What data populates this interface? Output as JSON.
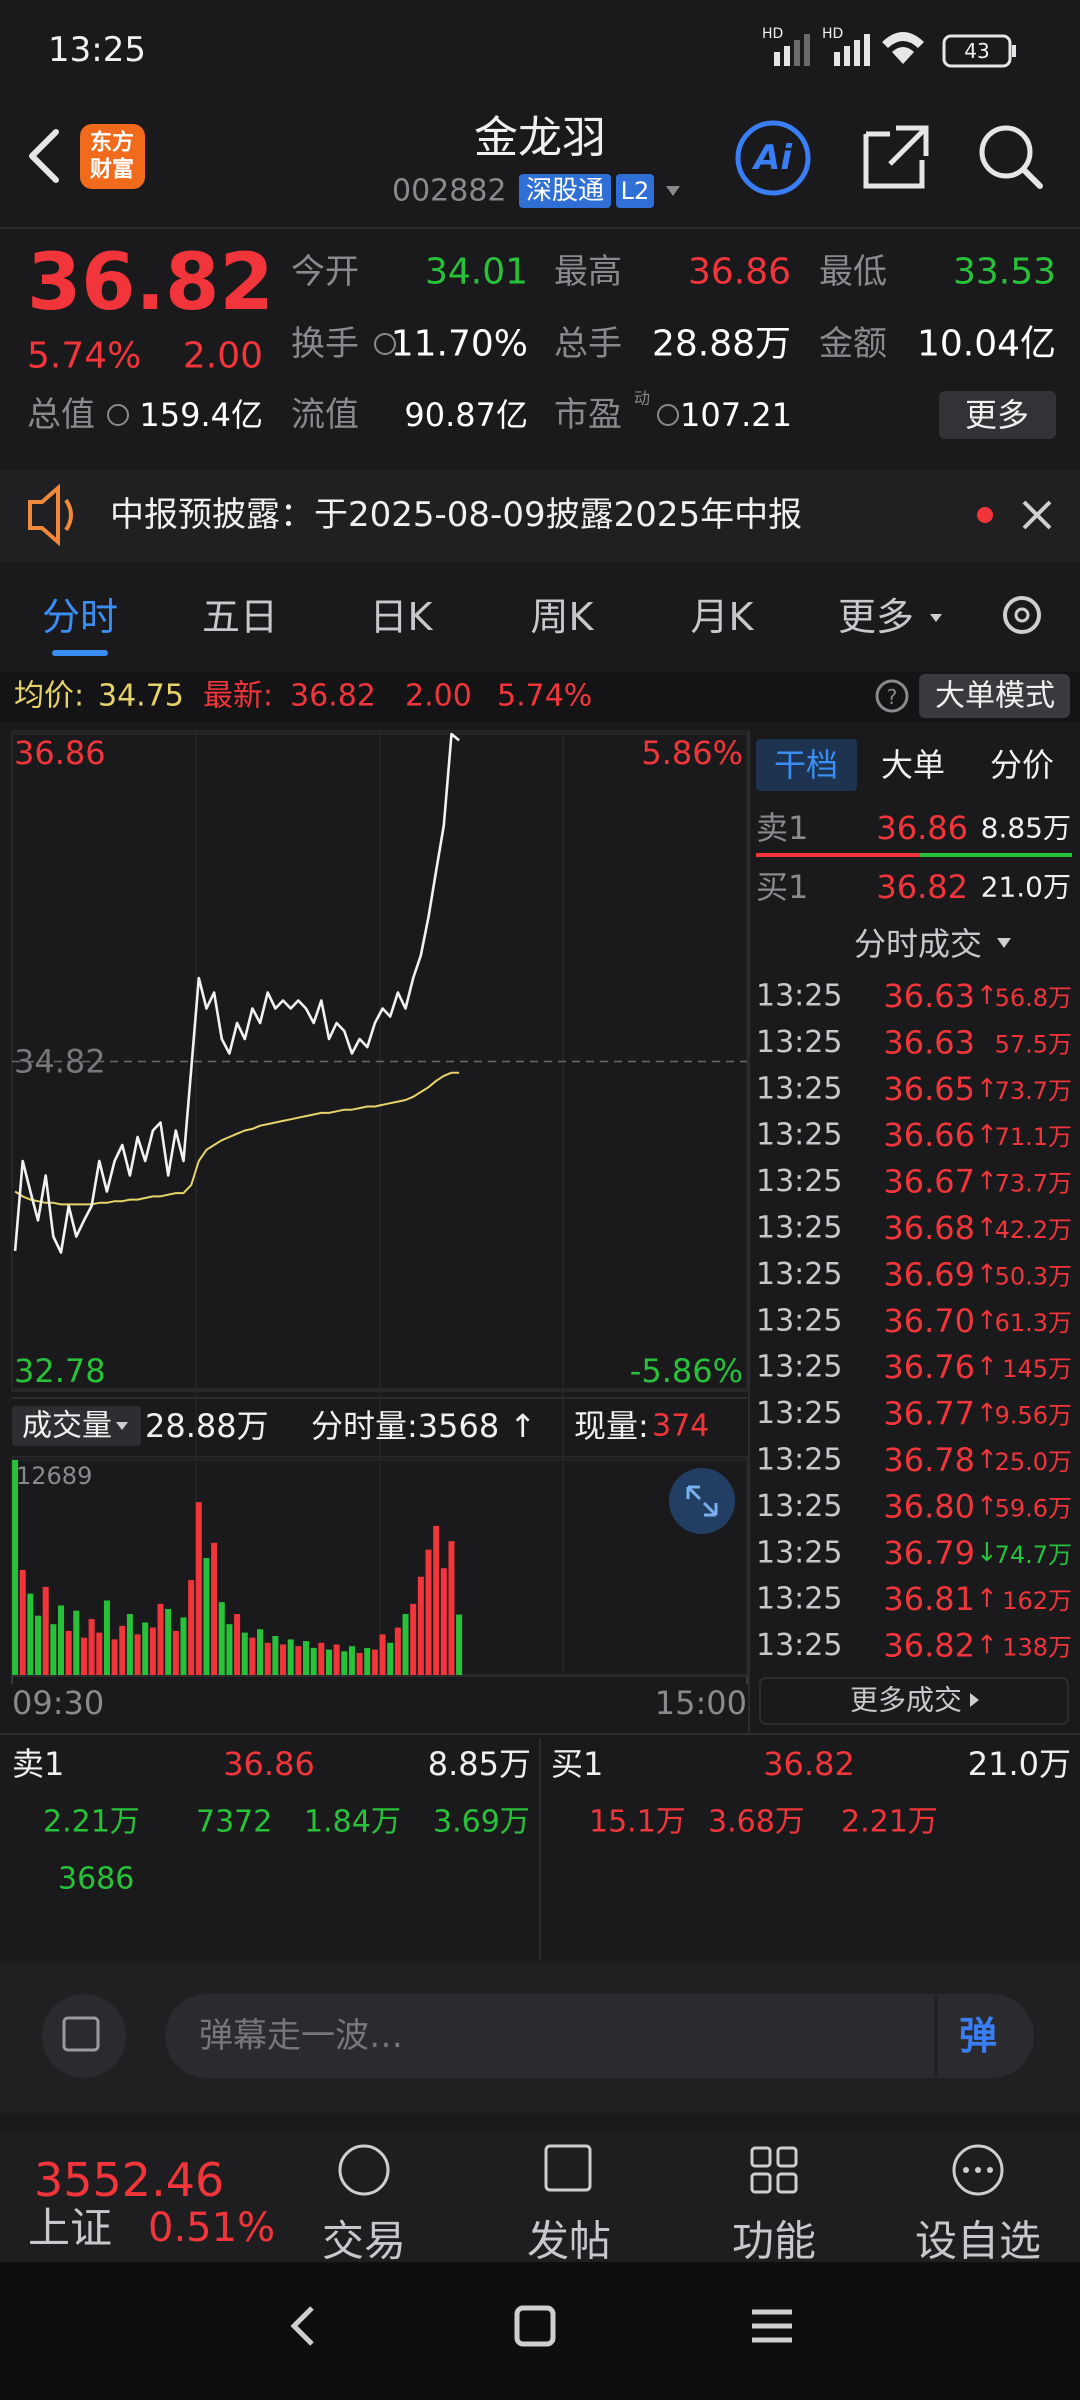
{
  "status": {
    "time": "13:25",
    "hd": "HD",
    "battery": "43"
  },
  "header": {
    "logo": [
      "东方",
      "财富"
    ],
    "title": "金龙羽",
    "code": "002882",
    "badges": [
      "深股通",
      "L2"
    ],
    "ai": "Ai"
  },
  "quote": {
    "price": "36.82",
    "pct": "5.74%",
    "change": "2.00",
    "color": "#f2353a",
    "stats": [
      {
        "label": "今开",
        "value": "34.01",
        "color": "#27c23a"
      },
      {
        "label": "最高",
        "value": "36.86",
        "color": "#f2353a"
      },
      {
        "label": "最低",
        "value": "33.53",
        "color": "#27c23a"
      },
      {
        "label": "换手",
        "value": "11.70%",
        "color": "#ffffff"
      },
      {
        "label": "总手",
        "value": "28.88万",
        "color": "#ffffff"
      },
      {
        "label": "金额",
        "value": "10.04亿",
        "color": "#ffffff"
      },
      {
        "label": "总值",
        "value": "159.4亿",
        "color": "#ffffff"
      },
      {
        "label": "流值",
        "value": "90.87亿",
        "color": "#ffffff"
      },
      {
        "label": "市盈",
        "value": "107.21",
        "color": "#ffffff"
      }
    ],
    "pe_note": "动",
    "more": "更多"
  },
  "notice": {
    "text": "中报预披露：于2025-08-09披露2025年中报"
  },
  "tabs": {
    "items": [
      "分时",
      "五日",
      "日K",
      "周K",
      "月K",
      "更多"
    ],
    "active": 0
  },
  "info": {
    "avg_label": "均价:",
    "avg": "34.75",
    "latest_label": "最新:",
    "latest": "36.82",
    "change": "2.00",
    "pct": "5.74%",
    "mode": "大单模式"
  },
  "chart_data": [
    {
      "type": "line",
      "x": [
        1,
        3.5,
        6,
        8.5,
        11,
        13.5,
        16,
        18.5,
        21,
        23.5,
        26,
        28.5,
        31,
        33.5,
        36,
        38.5,
        41,
        43.5,
        46,
        48.5,
        51,
        53.5,
        56,
        58.5,
        61,
        63.5,
        66,
        68.5,
        71,
        73.5,
        76,
        78.5,
        81,
        83.5,
        86,
        88.5,
        91,
        93.5,
        96,
        98.5,
        101,
        103.5,
        106,
        108.5,
        111,
        113.5,
        116,
        118.5,
        121,
        123.5,
        126,
        128.5,
        131,
        133.5,
        136,
        138.5,
        141,
        143.5,
        146
      ],
      "xlim": [
        0,
        240
      ],
      "xticks": [
        {
          "value": 0,
          "label": "09:30"
        },
        {
          "value": 240,
          "label": "15:00"
        }
      ],
      "ylim": [
        32.78,
        36.86
      ],
      "yticks": [
        32.78,
        34.82,
        36.86
      ],
      "pct_labels": [
        "-5.86%",
        "5.86%"
      ],
      "up_color": "#f2353a",
      "down_color": "#27c23a",
      "series": [
        {
          "color": "#f2f2f2",
          "values": [
            33.64,
            34.2,
            34.01,
            33.83,
            34.11,
            33.73,
            33.63,
            33.92,
            33.73,
            33.83,
            33.92,
            34.2,
            34.01,
            34.2,
            34.3,
            34.11,
            34.35,
            34.2,
            34.39,
            34.44,
            34.11,
            34.39,
            34.2,
            34.77,
            35.34,
            35.15,
            35.25,
            34.96,
            34.87,
            35.06,
            34.96,
            35.15,
            35.06,
            35.25,
            35.15,
            35.2,
            35.15,
            35.2,
            35.15,
            35.06,
            35.2,
            34.96,
            35.06,
            35.01,
            34.87,
            34.96,
            34.91,
            35.06,
            35.15,
            35.1,
            35.25,
            35.15,
            35.34,
            35.48,
            35.72,
            36.01,
            36.29,
            36.86,
            36.82
          ]
        },
        {
          "color": "#e8d36a",
          "values": [
            34.01,
            33.98,
            33.96,
            33.95,
            33.94,
            33.94,
            33.93,
            33.93,
            33.93,
            33.93,
            33.93,
            33.94,
            33.94,
            33.95,
            33.95,
            33.96,
            33.96,
            33.97,
            33.98,
            33.98,
            33.99,
            34.0,
            34.0,
            34.05,
            34.2,
            34.27,
            34.3,
            34.33,
            34.35,
            34.37,
            34.39,
            34.4,
            34.42,
            34.43,
            34.44,
            34.45,
            34.46,
            34.47,
            34.48,
            34.49,
            34.5,
            34.5,
            34.51,
            34.52,
            34.52,
            34.53,
            34.54,
            34.54,
            34.55,
            34.56,
            34.57,
            34.58,
            34.6,
            34.63,
            34.66,
            34.7,
            34.73,
            34.75,
            34.75
          ]
        }
      ]
    },
    {
      "type": "bar",
      "title": "成交量",
      "total": "28.88万",
      "minute_label": "分时量:3568 ↑",
      "current_label": "现量:",
      "current": "374",
      "ylim": [
        0,
        12689
      ],
      "yticks": [
        12689
      ],
      "up_color": "#f2353a",
      "down_color": "#27c23a",
      "values": [
        12689,
        6200,
        4800,
        3500,
        5200,
        3000,
        4100,
        2600,
        3800,
        2200,
        3300,
        2500,
        4400,
        2100,
        2900,
        3600,
        2400,
        3100,
        2800,
        4200,
        3900,
        2600,
        3400,
        5600,
        10200,
        6900,
        7800,
        4300,
        3000,
        3600,
        2500,
        2200,
        2700,
        1900,
        2300,
        1800,
        2100,
        1700,
        2000,
        1600,
        1900,
        1500,
        1800,
        1400,
        1700,
        1300,
        1600,
        1500,
        2400,
        1900,
        2800,
        3600,
        4200,
        5800,
        7400,
        8800,
        6300,
        7900,
        3568
      ]
    }
  ],
  "panel": {
    "tabs": [
      "干档",
      "大单",
      "分价"
    ],
    "sell": {
      "label": "卖1",
      "price": "36.86",
      "vol": "8.85万"
    },
    "buy": {
      "label": "买1",
      "price": "36.82",
      "vol": "21.0万"
    },
    "trades_title": "分时成交",
    "trades": [
      {
        "time": "13:25",
        "price": "36.63",
        "dir": "↑",
        "vol": "56.8万",
        "color": "#f2353a"
      },
      {
        "time": "13:25",
        "price": "36.63",
        "vol": "57.5万",
        "color": "#f2353a"
      },
      {
        "time": "13:25",
        "price": "36.65",
        "dir": "↑",
        "vol": "73.7万",
        "color": "#f2353a"
      },
      {
        "time": "13:25",
        "price": "36.66",
        "dir": "↑",
        "vol": "71.1万",
        "color": "#f2353a"
      },
      {
        "time": "13:25",
        "price": "36.67",
        "dir": "↑",
        "vol": "73.7万",
        "color": "#f2353a"
      },
      {
        "time": "13:25",
        "price": "36.68",
        "dir": "↑",
        "vol": "42.2万",
        "color": "#f2353a"
      },
      {
        "time": "13:25",
        "price": "36.69",
        "dir": "↑",
        "vol": "50.3万",
        "color": "#f2353a"
      },
      {
        "time": "13:25",
        "price": "36.70",
        "dir": "↑",
        "vol": "61.3万",
        "color": "#f2353a"
      },
      {
        "time": "13:25",
        "price": "36.76",
        "dir": "↑",
        "vol": "145万",
        "color": "#f2353a"
      },
      {
        "time": "13:25",
        "price": "36.77",
        "dir": "↑",
        "vol": "9.56万",
        "color": "#f2353a"
      },
      {
        "time": "13:25",
        "price": "36.78",
        "dir": "↑",
        "vol": "25.0万",
        "color": "#f2353a"
      },
      {
        "time": "13:25",
        "price": "36.80",
        "dir": "↑",
        "vol": "59.6万",
        "color": "#f2353a"
      },
      {
        "time": "13:25",
        "price": "36.79",
        "dir": "↓",
        "vol": "74.7万",
        "color": "#27c23a"
      },
      {
        "time": "13:25",
        "price": "36.81",
        "dir": "↑",
        "vol": "162万",
        "color": "#f2353a"
      },
      {
        "time": "13:25",
        "price": "36.82",
        "dir": "↑",
        "vol": "138万",
        "color": "#f2353a"
      }
    ],
    "more": "更多成交"
  },
  "book": {
    "sell": {
      "label": "卖1",
      "price": "36.86",
      "vol": "8.85万",
      "details": [
        "2.21万",
        "7372",
        "1.84万",
        "3.69万",
        "3686"
      ]
    },
    "buy": {
      "label": "买1",
      "price": "36.82",
      "vol": "21.0万",
      "details": [
        "15.1万",
        "3.68万",
        "2.21万"
      ]
    }
  },
  "danmaku": {
    "placeholder": "弹幕走一波…",
    "button": "弹"
  },
  "footer": {
    "index_value": "3552.46",
    "index_name": "上证",
    "index_pct": "0.51%",
    "items": [
      "交易",
      "发帖",
      "功能",
      "设自选"
    ]
  }
}
